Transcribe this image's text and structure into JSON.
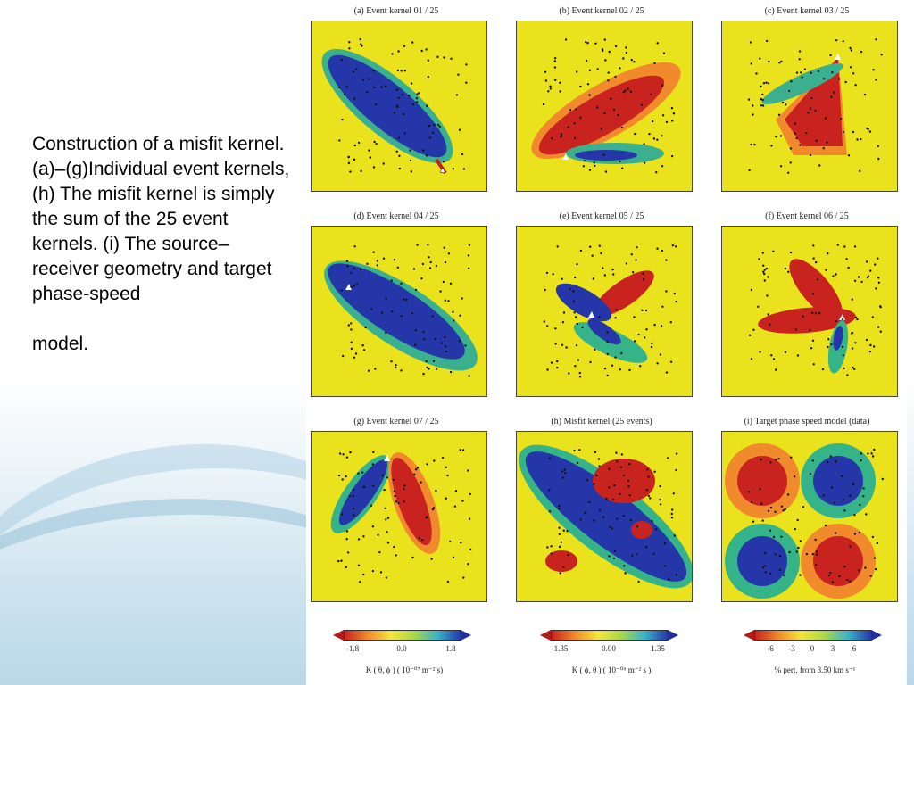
{
  "caption": "Construction of a misfit kernel.(a)–(g)Individual event kernels, (h) The misfit kernel is simply the sum of the 25 event kernels. (i) The source–receiver geometry and target phase-speed\n\nmodel.",
  "panels": [
    {
      "title": "(a)  Event kernel  01 / 25"
    },
    {
      "title": "(b)  Event kernel  02 / 25"
    },
    {
      "title": "(c)  Event kernel  03 / 25"
    },
    {
      "title": "(d)  Event kernel  04 / 25"
    },
    {
      "title": "(e)  Event kernel  05 / 25"
    },
    {
      "title": "(f)  Event kernel  06 / 25"
    },
    {
      "title": "(g)  Event kernel  07 / 25"
    },
    {
      "title": "(h)  Misfit kernel (25 events)"
    },
    {
      "title": "(i)  Target phase speed model (data)"
    }
  ],
  "colorbars": [
    {
      "ticks": [
        "-1.8",
        "0.0",
        "1.8"
      ],
      "unit": "K ( θ, ϕ )  ( 10⁻⁰⁷  m⁻² s)"
    },
    {
      "ticks": [
        "-1.35",
        "0.00",
        "1.35"
      ],
      "unit": "K ( ϕ, θ )  ( 10⁻⁰⁶  m⁻² s )"
    },
    {
      "ticks": [
        "-6",
        "-3",
        "0",
        "3",
        "6"
      ],
      "unit": "% pert. from 3.50 km s⁻¹"
    }
  ],
  "colors": {
    "yellow": "#e9e21c",
    "red": "#c8231f",
    "blue": "#2537a8",
    "green": "#35b48a"
  }
}
